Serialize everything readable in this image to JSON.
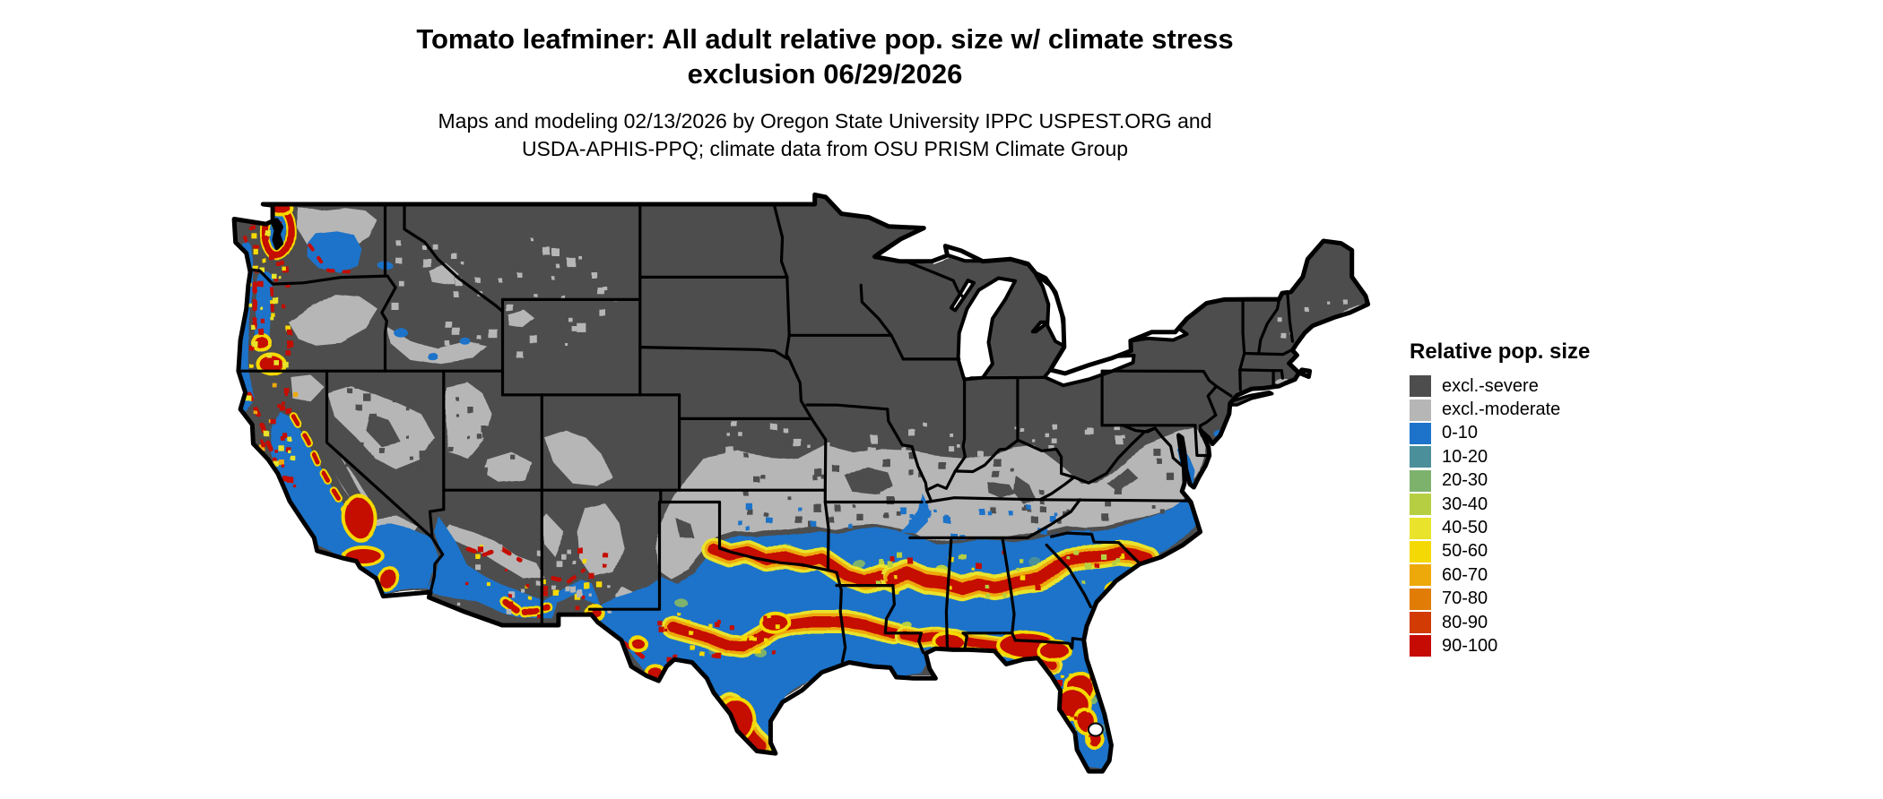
{
  "title": {
    "line1": "Tomato leafminer: All adult relative pop. size w/ climate stress",
    "line2": "exclusion 06/29/2026"
  },
  "subtitle": {
    "line1": "Maps and modeling 02/13/2026 by Oregon State University IPPC USPEST.ORG and",
    "line2": "USDA-APHIS-PPQ; climate data from OSU PRISM Climate Group"
  },
  "legend": {
    "title": "Relative pop. size",
    "items": [
      {
        "key": "excl_severe",
        "label": "excl.-severe",
        "color": "#4d4d4d"
      },
      {
        "key": "excl_moderate",
        "label": "excl.-moderate",
        "color": "#b6b6b6"
      },
      {
        "key": "b0",
        "label": "0-10",
        "color": "#1d73c9"
      },
      {
        "key": "b10",
        "label": "10-20",
        "color": "#4b8f9b"
      },
      {
        "key": "b20",
        "label": "20-30",
        "color": "#7db26d"
      },
      {
        "key": "b30",
        "label": "30-40",
        "color": "#b6cf42"
      },
      {
        "key": "b40",
        "label": "40-50",
        "color": "#e9e32b"
      },
      {
        "key": "b50",
        "label": "50-60",
        "color": "#f5d904"
      },
      {
        "key": "b60",
        "label": "60-70",
        "color": "#eda909"
      },
      {
        "key": "b70",
        "label": "70-80",
        "color": "#e17c06"
      },
      {
        "key": "b80",
        "label": "80-90",
        "color": "#d23c04"
      },
      {
        "key": "b90",
        "label": "90-100",
        "color": "#c50b03"
      }
    ]
  },
  "map": {
    "region": "Contiguous United States",
    "water_color": "#ffffff",
    "border_color": "#000000"
  }
}
